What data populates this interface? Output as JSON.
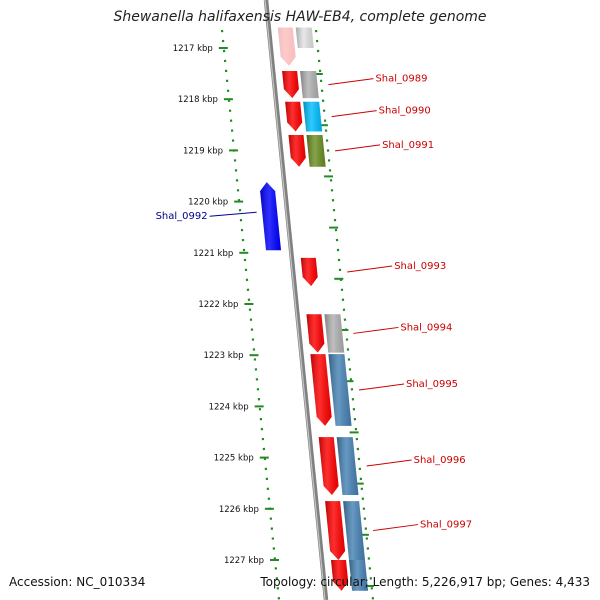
{
  "title": "Shewanella halifaxensis HAW-EB4, complete genome",
  "footer": {
    "accession": "Accession: NC_010334",
    "summary": "Topology: circular; Length: 5,226,917 bp; Genes: 4,433"
  },
  "colors": {
    "backbone": "#808080",
    "forward_cds": "#ff0000",
    "reverse_cds": "#0000ff",
    "tick_marks": "#228b22",
    "forward_label": "#cc0000",
    "reverse_label": "#00008b",
    "feature_gray": "#b0b0b0",
    "feature_cyan": "#00bfff",
    "feature_olive": "#6b8e23",
    "feature_steelblue": "#4682b4"
  },
  "scale_ticks": [
    {
      "label": "1217 kbp",
      "kbp": 1217
    },
    {
      "label": "1218 kbp",
      "kbp": 1218
    },
    {
      "label": "1219 kbp",
      "kbp": 1219
    },
    {
      "label": "1220 kbp",
      "kbp": 1220
    },
    {
      "label": "1221 kbp",
      "kbp": 1221
    },
    {
      "label": "1222 kbp",
      "kbp": 1222
    },
    {
      "label": "1223 kbp",
      "kbp": 1223
    },
    {
      "label": "1224 kbp",
      "kbp": 1224
    },
    {
      "label": "1225 kbp",
      "kbp": 1225
    },
    {
      "label": "1226 kbp",
      "kbp": 1226
    },
    {
      "label": "1227 kbp",
      "kbp": 1227
    }
  ],
  "features": [
    {
      "strand": "+",
      "start_kbp": 1216.6,
      "end_kbp": 1217.35,
      "color": "forward_cds"
    },
    {
      "strand": "+",
      "start_kbp": 1217.45,
      "end_kbp": 1217.98,
      "color": "forward_cds",
      "label": "Shal_0989"
    },
    {
      "strand": "+",
      "start_kbp": 1218.05,
      "end_kbp": 1218.63,
      "color": "forward_cds",
      "label": "Shal_0990"
    },
    {
      "strand": "+",
      "start_kbp": 1218.7,
      "end_kbp": 1219.32,
      "color": "forward_cds",
      "label": "Shal_0991"
    },
    {
      "strand": "-",
      "start_kbp": 1219.62,
      "end_kbp": 1220.95,
      "color": "reverse_cds",
      "label": "Shal_0992"
    },
    {
      "strand": "+",
      "start_kbp": 1221.1,
      "end_kbp": 1221.65,
      "color": "forward_cds",
      "label": "Shal_0993"
    },
    {
      "strand": "+",
      "start_kbp": 1222.2,
      "end_kbp": 1222.95,
      "color": "forward_cds",
      "label": "Shal_0994"
    },
    {
      "strand": "+",
      "start_kbp": 1222.98,
      "end_kbp": 1224.38,
      "color": "forward_cds",
      "label": "Shal_0995"
    },
    {
      "strand": "+",
      "start_kbp": 1224.6,
      "end_kbp": 1225.73,
      "color": "forward_cds",
      "label": "Shal_0996"
    },
    {
      "strand": "+",
      "start_kbp": 1225.85,
      "end_kbp": 1227.0,
      "color": "forward_cds",
      "label": "Shal_0997"
    },
    {
      "strand": "+",
      "start_kbp": 1227.0,
      "end_kbp": 1227.6,
      "color": "forward_cds"
    }
  ],
  "outer_features": [
    {
      "start_kbp": 1216.6,
      "end_kbp": 1217.0,
      "color": "feature_gray"
    },
    {
      "start_kbp": 1217.45,
      "end_kbp": 1217.98,
      "color": "feature_gray"
    },
    {
      "start_kbp": 1218.05,
      "end_kbp": 1218.63,
      "color": "feature_cyan"
    },
    {
      "start_kbp": 1218.7,
      "end_kbp": 1219.32,
      "color": "feature_olive"
    },
    {
      "start_kbp": 1222.2,
      "end_kbp": 1222.95,
      "color": "feature_gray"
    },
    {
      "start_kbp": 1222.98,
      "end_kbp": 1224.38,
      "color": "feature_steelblue"
    },
    {
      "start_kbp": 1224.6,
      "end_kbp": 1225.73,
      "color": "feature_steelblue"
    },
    {
      "start_kbp": 1225.85,
      "end_kbp": 1227.0,
      "color": "feature_steelblue"
    },
    {
      "start_kbp": 1227.0,
      "end_kbp": 1227.6,
      "color": "feature_steelblue"
    }
  ]
}
